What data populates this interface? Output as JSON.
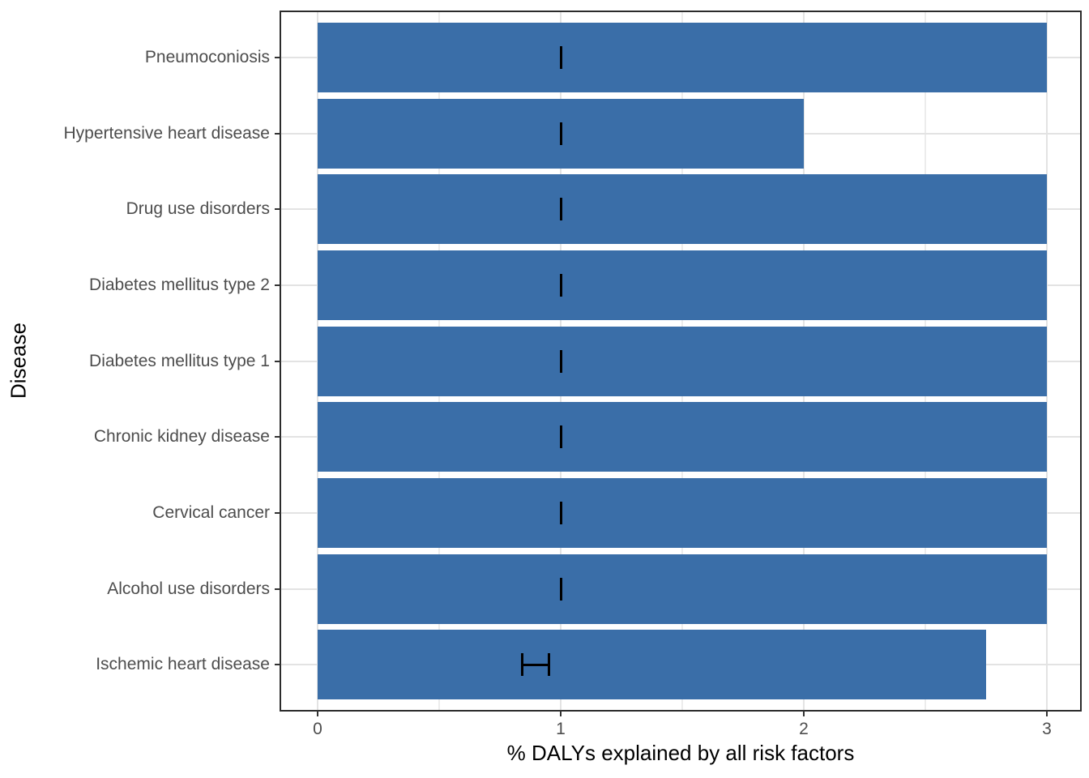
{
  "chart_data": {
    "type": "bar",
    "orientation": "horizontal",
    "title": "",
    "xlabel": "% DALYs explained by all risk factors",
    "ylabel": "Disease",
    "xlim": [
      0,
      3
    ],
    "x_ticks": [
      0,
      1,
      2,
      3
    ],
    "x_minor_gridlines": [
      0.5,
      1.5,
      2.5
    ],
    "grid": true,
    "legend_position": "none",
    "rows_top_to_bottom": [
      {
        "label": "Pneumoconiosis",
        "value": 3.0,
        "error_low": 1.0,
        "error_high": 1.0
      },
      {
        "label": "Hypertensive heart disease",
        "value": 2.0,
        "error_low": 1.0,
        "error_high": 1.0
      },
      {
        "label": "Drug use disorders",
        "value": 3.0,
        "error_low": 1.0,
        "error_high": 1.0
      },
      {
        "label": "Diabetes mellitus type 2",
        "value": 3.0,
        "error_low": 1.0,
        "error_high": 1.0
      },
      {
        "label": "Diabetes mellitus type 1",
        "value": 3.0,
        "error_low": 1.0,
        "error_high": 1.0
      },
      {
        "label": "Chronic kidney disease",
        "value": 3.0,
        "error_low": 1.0,
        "error_high": 1.0
      },
      {
        "label": "Cervical cancer",
        "value": 3.0,
        "error_low": 1.0,
        "error_high": 1.0
      },
      {
        "label": "Alcohol use disorders",
        "value": 3.0,
        "error_low": 1.0,
        "error_high": 1.0
      },
      {
        "label": "Ischemic heart disease",
        "value": 2.75,
        "error_low": 0.84,
        "error_high": 0.95
      }
    ]
  },
  "colors": {
    "bar": "#3A6EA8",
    "grid_major": "#E3E3E3",
    "grid_minor": "#ECECEC",
    "panel_border": "#2B2B2B",
    "tick_mark": "#333333",
    "axis_text": "#4D4D4D",
    "axis_title": "#000000",
    "error_bar": "#000000",
    "background": "#FFFFFF"
  }
}
